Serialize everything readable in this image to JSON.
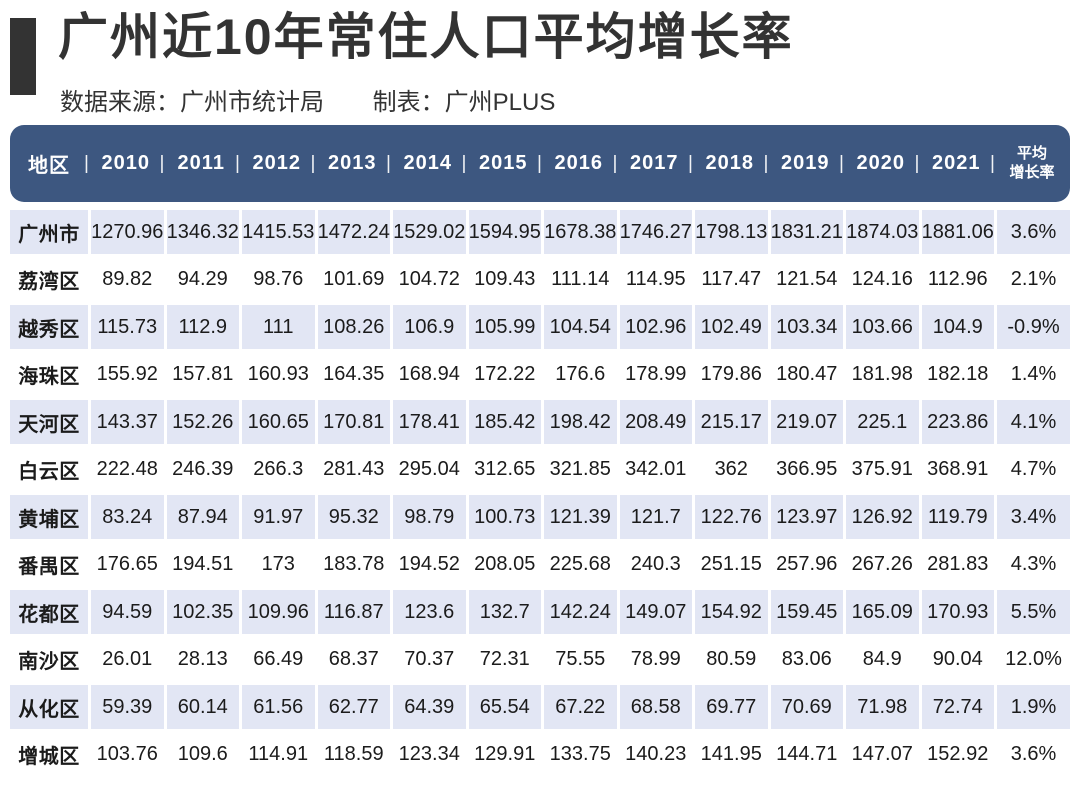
{
  "page": {
    "title": "广州近10年常住人口平均增长率",
    "source": "数据来源：广州市统计局",
    "maker": "制表：广州PLUS"
  },
  "colors": {
    "header_bg": "#3D5780",
    "alt_row_bg": "#E2E6F4",
    "accent_dark": "#333333",
    "body_text": "#1b1b1b"
  },
  "header": {
    "separator": "|",
    "labels": [
      "地区",
      "2010",
      "2011",
      "2012",
      "2013",
      "2014",
      "2015",
      "2016",
      "2017",
      "2018",
      "2019",
      "2020",
      "2021",
      "平均\n增长率"
    ]
  },
  "chart_data": {
    "type": "table",
    "title": "广州近10年常住人口平均增长率",
    "columns": [
      "地区",
      "2010",
      "2011",
      "2012",
      "2013",
      "2014",
      "2015",
      "2016",
      "2017",
      "2018",
      "2019",
      "2020",
      "2021",
      "平均增长率"
    ],
    "rows": [
      {
        "region": "广州市",
        "values": [
          1270.96,
          1346.32,
          1415.53,
          1472.24,
          1529.02,
          1594.95,
          1678.38,
          1746.27,
          1798.13,
          1831.21,
          1874.03,
          1881.06
        ],
        "avg_growth": "3.6%"
      },
      {
        "region": "荔湾区",
        "values": [
          89.82,
          94.29,
          98.76,
          101.69,
          104.72,
          109.43,
          111.14,
          114.95,
          117.47,
          121.54,
          124.16,
          112.96
        ],
        "avg_growth": "2.1%"
      },
      {
        "region": "越秀区",
        "values": [
          115.73,
          112.9,
          111,
          108.26,
          106.9,
          105.99,
          104.54,
          102.96,
          102.49,
          103.34,
          103.66,
          104.9
        ],
        "avg_growth": "-0.9%"
      },
      {
        "region": "海珠区",
        "values": [
          155.92,
          157.81,
          160.93,
          164.35,
          168.94,
          172.22,
          176.6,
          178.99,
          179.86,
          180.47,
          181.98,
          182.18
        ],
        "avg_growth": "1.4%"
      },
      {
        "region": "天河区",
        "values": [
          143.37,
          152.26,
          160.65,
          170.81,
          178.41,
          185.42,
          198.42,
          208.49,
          215.17,
          219.07,
          225.1,
          223.86
        ],
        "avg_growth": "4.1%"
      },
      {
        "region": "白云区",
        "values": [
          222.48,
          246.39,
          266.3,
          281.43,
          295.04,
          312.65,
          321.85,
          342.01,
          362,
          366.95,
          375.91,
          368.91
        ],
        "avg_growth": "4.7%"
      },
      {
        "region": "黄埔区",
        "values": [
          83.24,
          87.94,
          91.97,
          95.32,
          98.79,
          100.73,
          121.39,
          121.7,
          122.76,
          123.97,
          126.92,
          119.79
        ],
        "avg_growth": "3.4%"
      },
      {
        "region": "番禺区",
        "values": [
          176.65,
          194.51,
          173,
          183.78,
          194.52,
          208.05,
          225.68,
          240.3,
          251.15,
          257.96,
          267.26,
          281.83
        ],
        "avg_growth": "4.3%"
      },
      {
        "region": "花都区",
        "values": [
          94.59,
          102.35,
          109.96,
          116.87,
          123.6,
          132.7,
          142.24,
          149.07,
          154.92,
          159.45,
          165.09,
          170.93
        ],
        "avg_growth": "5.5%"
      },
      {
        "region": "南沙区",
        "values": [
          26.01,
          28.13,
          66.49,
          68.37,
          70.37,
          72.31,
          75.55,
          78.99,
          80.59,
          83.06,
          84.9,
          90.04
        ],
        "avg_growth": "12.0%"
      },
      {
        "region": "从化区",
        "values": [
          59.39,
          60.14,
          61.56,
          62.77,
          64.39,
          65.54,
          67.22,
          68.58,
          69.77,
          70.69,
          71.98,
          72.74
        ],
        "avg_growth": "1.9%"
      },
      {
        "region": "增城区",
        "values": [
          103.76,
          109.6,
          114.91,
          118.59,
          123.34,
          129.91,
          133.75,
          140.23,
          141.95,
          144.71,
          147.07,
          152.92
        ],
        "avg_growth": "3.6%"
      }
    ]
  }
}
